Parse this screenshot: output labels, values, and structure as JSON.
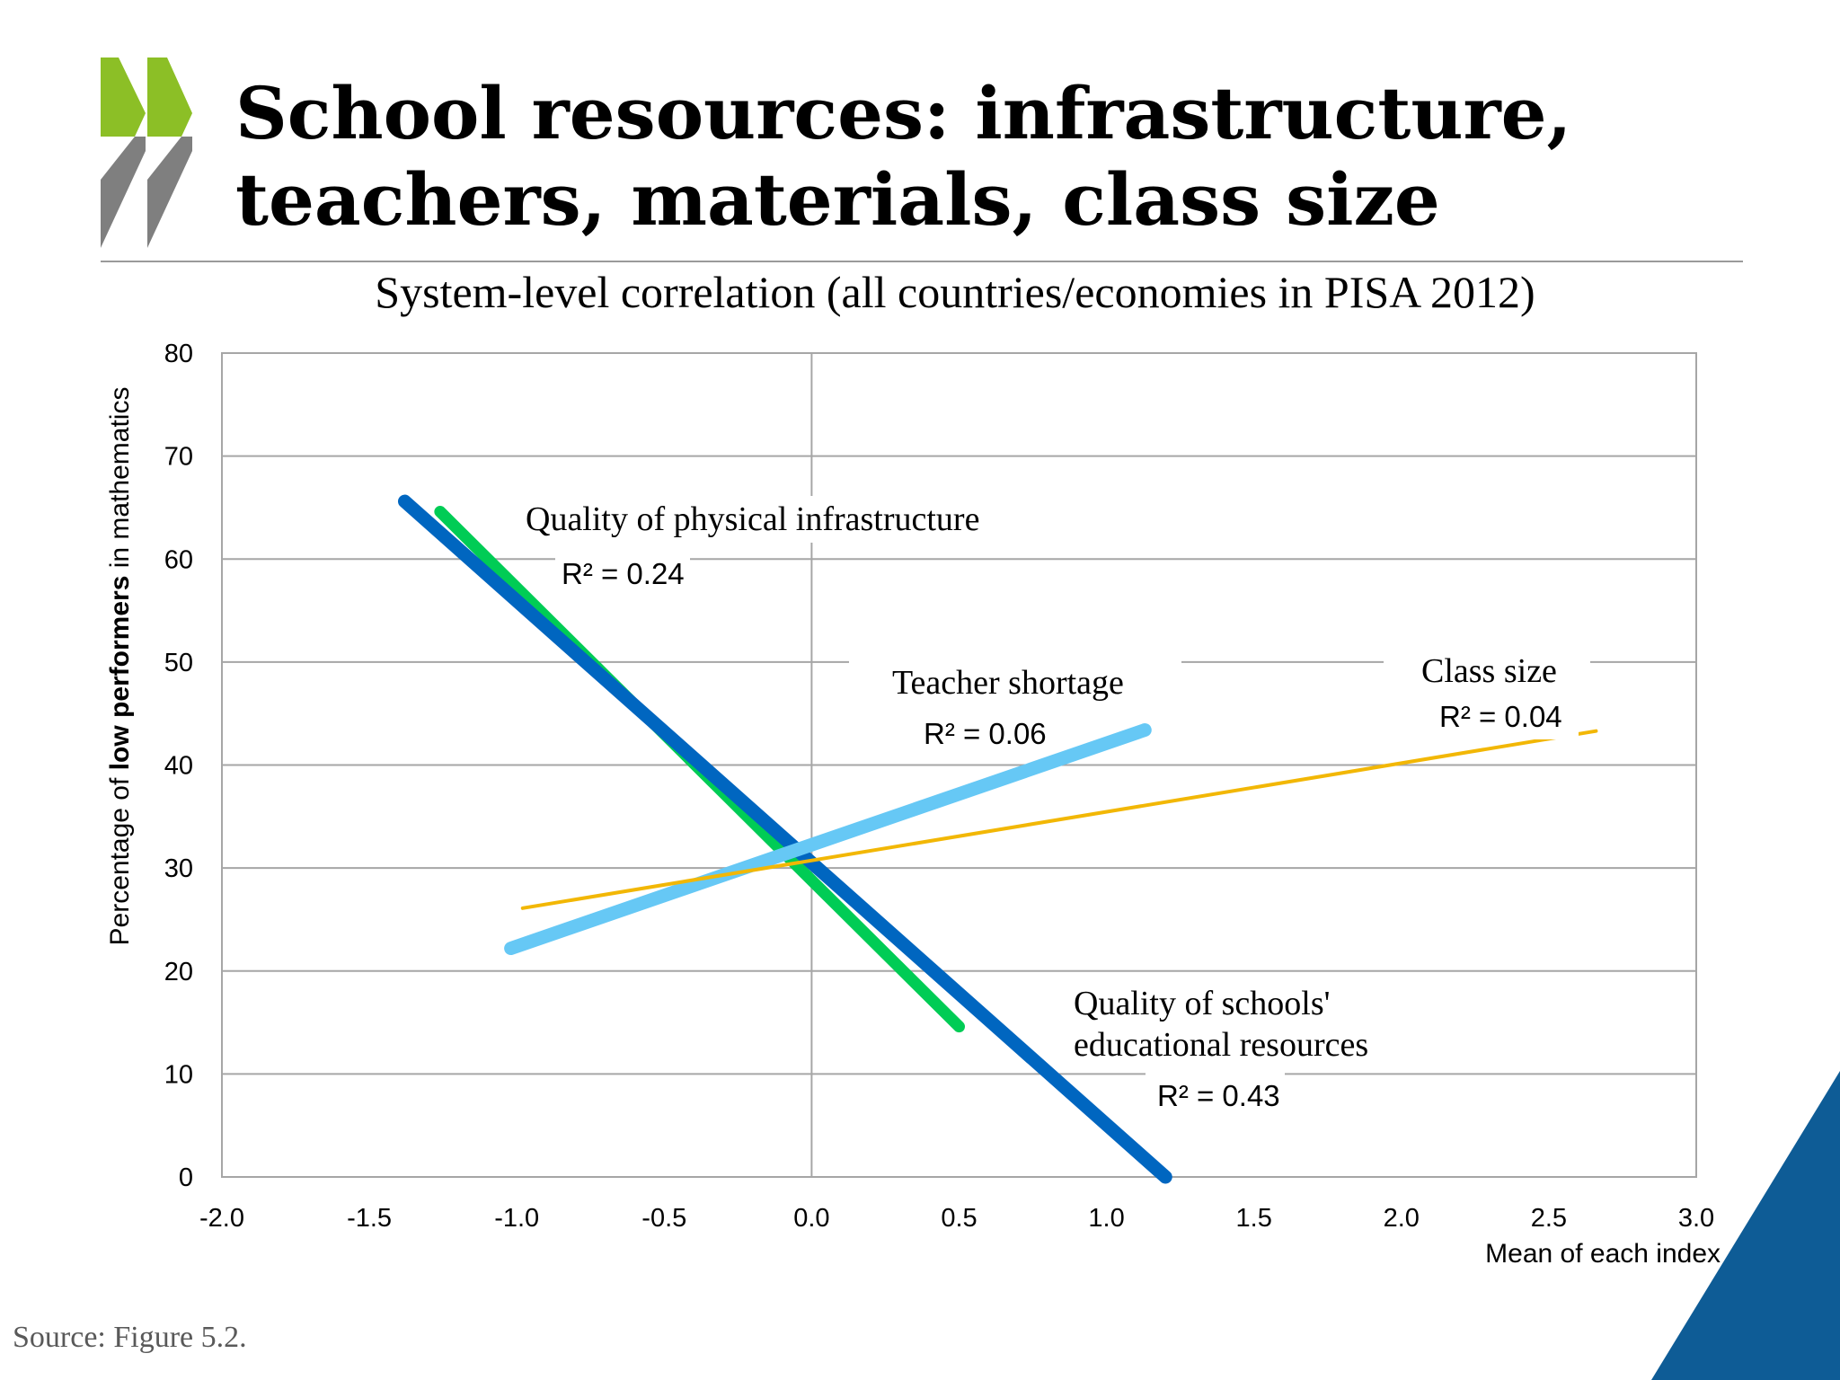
{
  "slide": {
    "title_lines": [
      "School resources: infrastructure,",
      "teachers, materials, class size"
    ],
    "subtitle": "System-level correlation (all countries/economies in PISA 2012)",
    "source": "Source: Figure 5.2."
  },
  "colors": {
    "logo_green": "#8cbf26",
    "logo_grey": "#7f7f7f",
    "corner_blue": "#0e5c96",
    "grid": "#a6a6a6"
  },
  "chart_data": {
    "type": "line",
    "title": "System-level correlation (all countries/economies in PISA 2012)",
    "xlabel": "Mean of each index",
    "ylabel_parts": [
      "Percentage of ",
      "low performers",
      " in mathematics"
    ],
    "xlim": [
      -2.0,
      3.0
    ],
    "ylim": [
      0,
      80
    ],
    "x_ticks": [
      "-2.0",
      "-1.5",
      "-1.0",
      "-0.5",
      "0.0",
      "0.5",
      "1.0",
      "1.5",
      "2.0",
      "2.5",
      "3.0"
    ],
    "y_ticks": [
      "0",
      "10",
      "20",
      "30",
      "40",
      "50",
      "60",
      "70",
      "80"
    ],
    "grid": true,
    "series": [
      {
        "name": "Quality of physical infrastructure",
        "r2": "R² = 0.24",
        "color": "#00cc55",
        "width": 13,
        "x": [
          -1.26,
          0.5
        ],
        "y": [
          64.6,
          14.6
        ]
      },
      {
        "name": "Quality of schools' educational resources",
        "name_lines": [
          "Quality of schools'",
          "educational resources"
        ],
        "r2": "R² = 0.43",
        "color": "#0066c0",
        "width": 15,
        "x": [
          -1.38,
          1.2
        ],
        "y": [
          65.6,
          0
        ]
      },
      {
        "name": "Teacher shortage",
        "r2": "R² = 0.06",
        "color": "#66c8f5",
        "width": 15,
        "x": [
          -1.02,
          1.13
        ],
        "y": [
          22.2,
          43.4
        ]
      },
      {
        "name": "Class size",
        "r2": "R² = 0.04",
        "color": "#f2b705",
        "width": 4,
        "x": [
          -0.98,
          2.66
        ],
        "y": [
          26.1,
          43.3
        ]
      }
    ]
  }
}
